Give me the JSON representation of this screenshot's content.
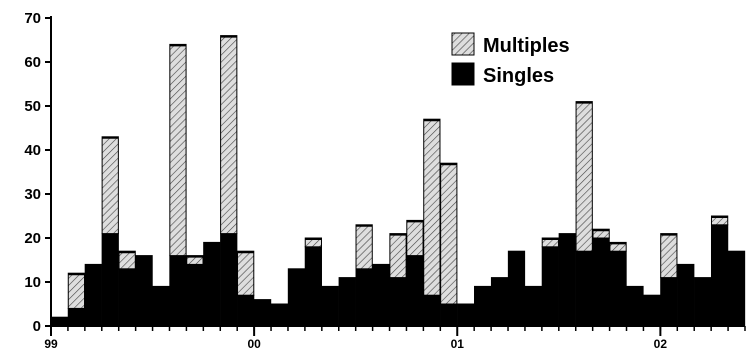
{
  "chart_data": {
    "type": "bar",
    "stacked": true,
    "title": "",
    "xlabel": "",
    "ylabel": "",
    "ylim": [
      0,
      70
    ],
    "yticks": [
      0,
      10,
      20,
      30,
      40,
      50,
      60,
      70
    ],
    "grid": false,
    "legend_position": "top-right",
    "x_tick_labels": [
      {
        "label": "99",
        "index": 0
      },
      {
        "label": "00",
        "index": 12
      },
      {
        "label": "01",
        "index": 24
      },
      {
        "label": "02",
        "index": 36
      }
    ],
    "series": [
      {
        "name": "Singles",
        "color": "#000000",
        "values": [
          2,
          4,
          14,
          21,
          13,
          16,
          9,
          16,
          14,
          19,
          21,
          7,
          6,
          5,
          13,
          18,
          9,
          11,
          13,
          14,
          11,
          16,
          7,
          5,
          5,
          9,
          11,
          17,
          9,
          18,
          21,
          17,
          20,
          17,
          9,
          7,
          11,
          14,
          11,
          23,
          17
        ]
      },
      {
        "name": "Multiples",
        "color": "#d8d8d8",
        "pattern": "diagonal-hatch",
        "values": [
          0,
          8,
          0,
          22,
          4,
          0,
          0,
          48,
          2,
          0,
          45,
          10,
          0,
          0,
          0,
          2,
          0,
          0,
          10,
          0,
          10,
          8,
          40,
          32,
          0,
          0,
          0,
          0,
          0,
          2,
          0,
          34,
          2,
          2,
          0,
          0,
          10,
          0,
          0,
          2,
          0
        ]
      }
    ],
    "legend": [
      {
        "label": "Multiples",
        "series": "Multiples"
      },
      {
        "label": "Singles",
        "series": "Singles"
      }
    ]
  }
}
